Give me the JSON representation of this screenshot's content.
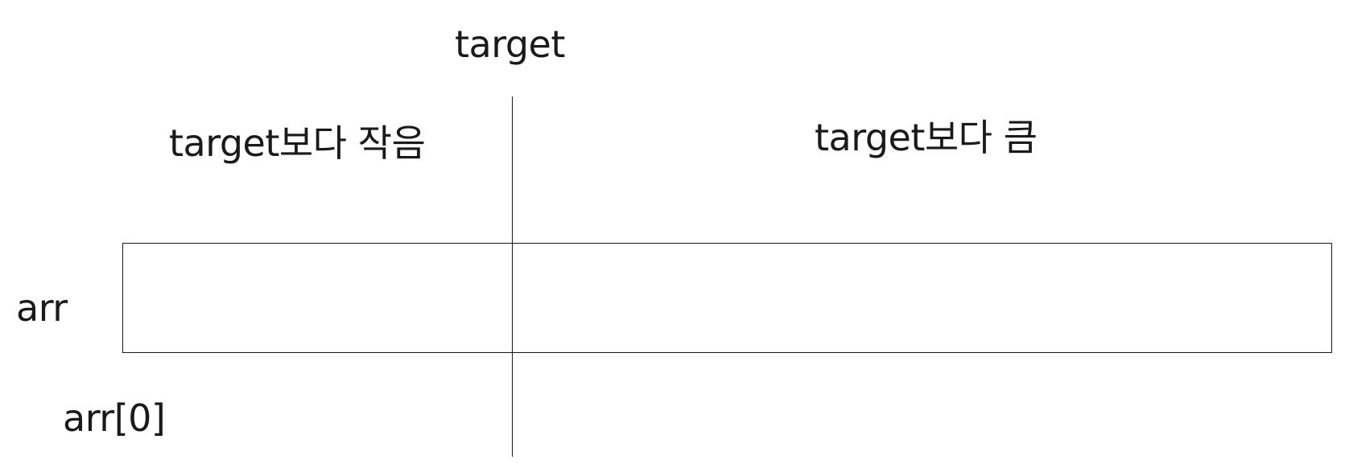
{
  "diagram": {
    "divider_label": "target",
    "left_region_label": "target보다 작음",
    "right_region_label": "target보다 큼",
    "array_label": "arr",
    "start_index_label": "arr[0]"
  },
  "colors": {
    "stroke": "#1a1a1a",
    "text": "#1a1a1a",
    "background": "#ffffff"
  }
}
